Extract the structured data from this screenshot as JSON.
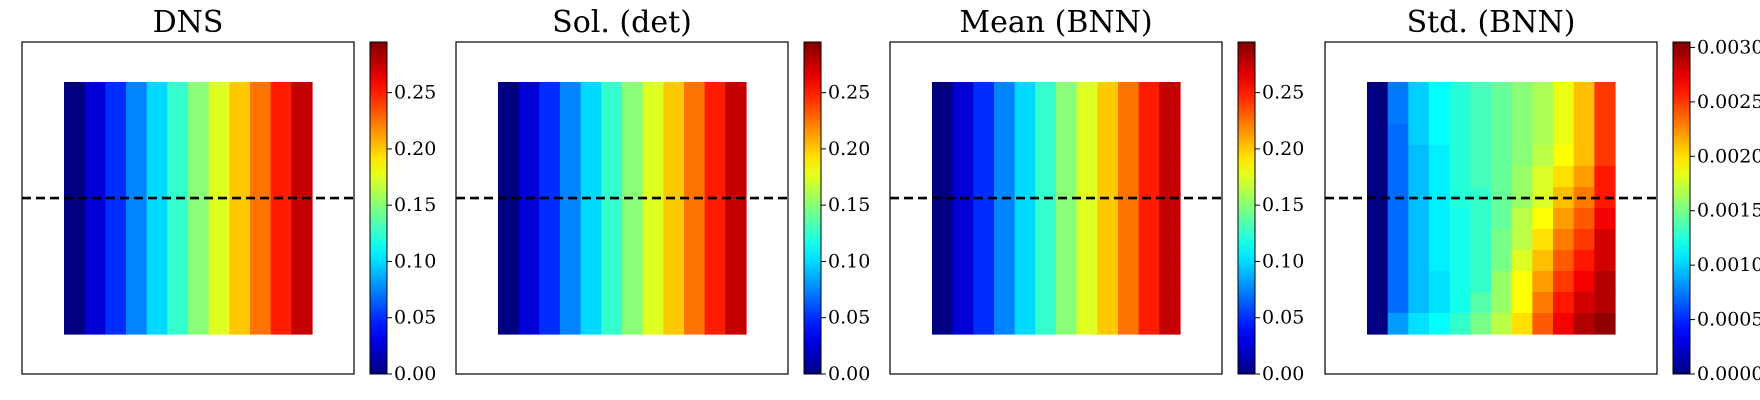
{
  "figure": {
    "panel_titles": [
      "DNS",
      "Sol. (det)",
      "Mean (BNN)",
      "Std. (BNN)"
    ]
  },
  "chart_data": [
    {
      "type": "heatmap",
      "title": "DNS",
      "rows": 12,
      "cols": 12,
      "values": [
        [
          0.0,
          0.025,
          0.05,
          0.075,
          0.1,
          0.125,
          0.15,
          0.175,
          0.2,
          0.225,
          0.25,
          0.275
        ],
        [
          0.0,
          0.025,
          0.05,
          0.075,
          0.1,
          0.125,
          0.15,
          0.175,
          0.2,
          0.225,
          0.25,
          0.275
        ],
        [
          0.0,
          0.025,
          0.05,
          0.075,
          0.1,
          0.125,
          0.15,
          0.175,
          0.2,
          0.225,
          0.25,
          0.275
        ],
        [
          0.0,
          0.025,
          0.05,
          0.075,
          0.1,
          0.125,
          0.15,
          0.175,
          0.2,
          0.225,
          0.25,
          0.275
        ],
        [
          0.0,
          0.025,
          0.05,
          0.075,
          0.1,
          0.125,
          0.15,
          0.175,
          0.2,
          0.225,
          0.25,
          0.275
        ],
        [
          0.0,
          0.025,
          0.05,
          0.075,
          0.1,
          0.125,
          0.15,
          0.175,
          0.2,
          0.225,
          0.25,
          0.275
        ],
        [
          0.0,
          0.025,
          0.05,
          0.075,
          0.1,
          0.125,
          0.15,
          0.175,
          0.2,
          0.225,
          0.25,
          0.275
        ],
        [
          0.0,
          0.025,
          0.05,
          0.075,
          0.1,
          0.125,
          0.15,
          0.175,
          0.2,
          0.225,
          0.25,
          0.275
        ],
        [
          0.0,
          0.025,
          0.05,
          0.075,
          0.1,
          0.125,
          0.15,
          0.175,
          0.2,
          0.225,
          0.25,
          0.275
        ],
        [
          0.0,
          0.025,
          0.05,
          0.075,
          0.1,
          0.125,
          0.15,
          0.175,
          0.2,
          0.225,
          0.25,
          0.275
        ],
        [
          0.0,
          0.025,
          0.05,
          0.075,
          0.1,
          0.125,
          0.15,
          0.175,
          0.2,
          0.225,
          0.25,
          0.275
        ],
        [
          0.0,
          0.025,
          0.05,
          0.075,
          0.1,
          0.125,
          0.15,
          0.175,
          0.2,
          0.225,
          0.25,
          0.275
        ]
      ],
      "dashed_line_y_fraction": 0.47,
      "colorbar": {
        "min": 0.0,
        "max": 0.295,
        "ticks": [
          0.0,
          0.05,
          0.1,
          0.15,
          0.2,
          0.25
        ],
        "tick_labels": [
          "0.00",
          "0.05",
          "0.10",
          "0.15",
          "0.20",
          "0.25"
        ],
        "colormap": "jet"
      },
      "grid": false
    },
    {
      "type": "heatmap",
      "title": "Sol. (det)",
      "rows": 12,
      "cols": 12,
      "values": [
        [
          0.0,
          0.025,
          0.05,
          0.075,
          0.1,
          0.125,
          0.15,
          0.175,
          0.2,
          0.225,
          0.25,
          0.275
        ],
        [
          0.0,
          0.025,
          0.05,
          0.075,
          0.1,
          0.125,
          0.15,
          0.175,
          0.2,
          0.225,
          0.25,
          0.275
        ],
        [
          0.0,
          0.025,
          0.05,
          0.075,
          0.1,
          0.125,
          0.15,
          0.175,
          0.2,
          0.225,
          0.25,
          0.275
        ],
        [
          0.0,
          0.025,
          0.05,
          0.075,
          0.1,
          0.125,
          0.15,
          0.175,
          0.2,
          0.225,
          0.25,
          0.275
        ],
        [
          0.0,
          0.025,
          0.05,
          0.075,
          0.1,
          0.125,
          0.15,
          0.175,
          0.2,
          0.225,
          0.25,
          0.275
        ],
        [
          0.0,
          0.025,
          0.05,
          0.075,
          0.1,
          0.125,
          0.15,
          0.175,
          0.2,
          0.225,
          0.25,
          0.275
        ],
        [
          0.0,
          0.025,
          0.05,
          0.075,
          0.1,
          0.125,
          0.15,
          0.175,
          0.2,
          0.225,
          0.25,
          0.275
        ],
        [
          0.0,
          0.025,
          0.05,
          0.075,
          0.1,
          0.125,
          0.15,
          0.175,
          0.2,
          0.225,
          0.25,
          0.275
        ],
        [
          0.0,
          0.025,
          0.05,
          0.075,
          0.1,
          0.125,
          0.15,
          0.175,
          0.2,
          0.225,
          0.25,
          0.275
        ],
        [
          0.0,
          0.025,
          0.05,
          0.075,
          0.1,
          0.125,
          0.15,
          0.175,
          0.2,
          0.225,
          0.25,
          0.275
        ],
        [
          0.0,
          0.025,
          0.05,
          0.075,
          0.1,
          0.125,
          0.15,
          0.175,
          0.2,
          0.225,
          0.25,
          0.275
        ],
        [
          0.0,
          0.025,
          0.05,
          0.075,
          0.1,
          0.125,
          0.15,
          0.175,
          0.2,
          0.225,
          0.25,
          0.275
        ]
      ],
      "dashed_line_y_fraction": 0.47,
      "colorbar": {
        "min": 0.0,
        "max": 0.295,
        "ticks": [
          0.0,
          0.05,
          0.1,
          0.15,
          0.2,
          0.25
        ],
        "tick_labels": [
          "0.00",
          "0.05",
          "0.10",
          "0.15",
          "0.20",
          "0.25"
        ],
        "colormap": "jet"
      },
      "grid": false
    },
    {
      "type": "heatmap",
      "title": "Mean (BNN)",
      "rows": 12,
      "cols": 12,
      "values": [
        [
          0.0,
          0.025,
          0.05,
          0.075,
          0.1,
          0.125,
          0.15,
          0.175,
          0.2,
          0.225,
          0.25,
          0.275
        ],
        [
          0.0,
          0.025,
          0.05,
          0.075,
          0.1,
          0.125,
          0.15,
          0.175,
          0.2,
          0.225,
          0.25,
          0.275
        ],
        [
          0.0,
          0.025,
          0.05,
          0.075,
          0.1,
          0.125,
          0.15,
          0.175,
          0.2,
          0.225,
          0.25,
          0.275
        ],
        [
          0.0,
          0.025,
          0.05,
          0.075,
          0.1,
          0.125,
          0.15,
          0.175,
          0.2,
          0.225,
          0.25,
          0.275
        ],
        [
          0.0,
          0.025,
          0.05,
          0.075,
          0.1,
          0.125,
          0.15,
          0.175,
          0.2,
          0.225,
          0.25,
          0.275
        ],
        [
          0.0,
          0.025,
          0.05,
          0.075,
          0.1,
          0.125,
          0.15,
          0.175,
          0.2,
          0.225,
          0.25,
          0.275
        ],
        [
          0.0,
          0.025,
          0.05,
          0.075,
          0.1,
          0.125,
          0.15,
          0.175,
          0.2,
          0.225,
          0.25,
          0.275
        ],
        [
          0.0,
          0.025,
          0.05,
          0.075,
          0.1,
          0.125,
          0.15,
          0.175,
          0.2,
          0.225,
          0.25,
          0.275
        ],
        [
          0.0,
          0.025,
          0.05,
          0.075,
          0.1,
          0.125,
          0.15,
          0.175,
          0.2,
          0.225,
          0.25,
          0.275
        ],
        [
          0.0,
          0.025,
          0.05,
          0.075,
          0.1,
          0.125,
          0.15,
          0.175,
          0.2,
          0.225,
          0.25,
          0.275
        ],
        [
          0.0,
          0.025,
          0.05,
          0.075,
          0.1,
          0.125,
          0.15,
          0.175,
          0.2,
          0.225,
          0.25,
          0.275
        ],
        [
          0.0,
          0.025,
          0.05,
          0.075,
          0.1,
          0.125,
          0.15,
          0.175,
          0.2,
          0.225,
          0.25,
          0.275
        ]
      ],
      "dashed_line_y_fraction": 0.47,
      "colorbar": {
        "min": 0.0,
        "max": 0.295,
        "ticks": [
          0.0,
          0.05,
          0.1,
          0.15,
          0.2,
          0.25
        ],
        "tick_labels": [
          "0.00",
          "0.05",
          "0.10",
          "0.15",
          "0.20",
          "0.25"
        ],
        "colormap": "jet"
      },
      "grid": false
    },
    {
      "type": "heatmap",
      "title": "Std. (BNN)",
      "rows": 12,
      "cols": 12,
      "values": [
        [
          0.0,
          0.00075,
          0.001,
          0.00115,
          0.00125,
          0.00135,
          0.00145,
          0.00155,
          0.00165,
          0.00185,
          0.0021,
          0.0025
        ],
        [
          0.0,
          0.00075,
          0.001,
          0.00115,
          0.00125,
          0.00135,
          0.00145,
          0.00155,
          0.00165,
          0.00185,
          0.0021,
          0.0025
        ],
        [
          0.0,
          0.0007,
          0.001,
          0.00115,
          0.00125,
          0.00135,
          0.00145,
          0.00155,
          0.00165,
          0.00185,
          0.0021,
          0.0025
        ],
        [
          0.0,
          0.0007,
          0.00095,
          0.0011,
          0.00125,
          0.00135,
          0.00145,
          0.00155,
          0.0017,
          0.0019,
          0.0021,
          0.0025
        ],
        [
          0.0,
          0.0007,
          0.00095,
          0.0011,
          0.00125,
          0.00135,
          0.00145,
          0.0016,
          0.0018,
          0.002,
          0.0022,
          0.0026
        ],
        [
          0.0,
          0.0007,
          0.00095,
          0.0011,
          0.00125,
          0.0013,
          0.00145,
          0.0016,
          0.0018,
          0.0021,
          0.0023,
          0.0026
        ],
        [
          0.0,
          0.0007,
          0.00095,
          0.0011,
          0.0012,
          0.0013,
          0.00145,
          0.0017,
          0.0019,
          0.0022,
          0.0024,
          0.0027
        ],
        [
          0.0,
          0.0007,
          0.00095,
          0.0011,
          0.0012,
          0.0013,
          0.0015,
          0.0017,
          0.002,
          0.0023,
          0.0025,
          0.0028
        ],
        [
          0.0,
          0.0007,
          0.00095,
          0.0011,
          0.0012,
          0.0013,
          0.0015,
          0.0018,
          0.0021,
          0.0024,
          0.0026,
          0.0028
        ],
        [
          0.0,
          0.0007,
          0.00095,
          0.00105,
          0.0012,
          0.0013,
          0.0016,
          0.0019,
          0.0022,
          0.0025,
          0.0027,
          0.0029
        ],
        [
          0.0,
          0.0007,
          0.00095,
          0.00105,
          0.0012,
          0.0014,
          0.0016,
          0.0019,
          0.0023,
          0.0026,
          0.0028,
          0.0029
        ],
        [
          0.0,
          0.00085,
          0.00105,
          0.00115,
          0.0013,
          0.0015,
          0.0017,
          0.002,
          0.0024,
          0.0027,
          0.0029,
          0.003
        ]
      ],
      "dashed_line_y_fraction": 0.47,
      "colorbar": {
        "min": 0.0,
        "max": 0.00305,
        "ticks": [
          0.0,
          0.0005,
          0.001,
          0.0015,
          0.002,
          0.0025,
          0.003
        ],
        "tick_labels": [
          "0.0000",
          "0.0005",
          "0.0010",
          "0.0015",
          "0.0020",
          "0.0025",
          "0.0030"
        ],
        "colormap": "jet"
      },
      "grid": false
    }
  ]
}
